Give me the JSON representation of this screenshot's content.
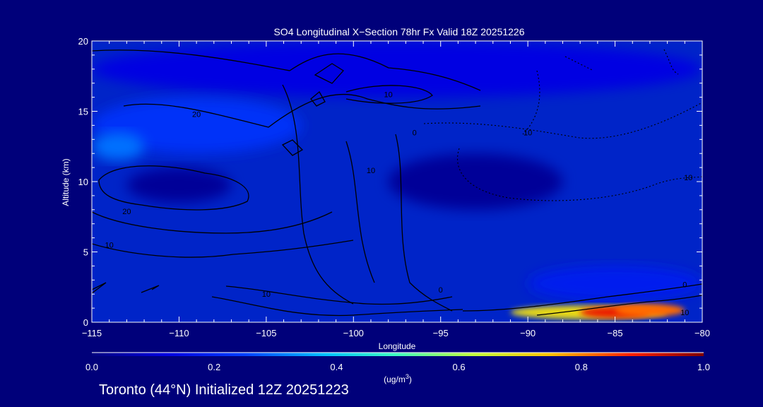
{
  "chart_data": {
    "type": "heatmap",
    "title": "SO4 Longitudinal X−Section 78hr  Fx Valid 18Z 20251226",
    "xlabel": "Longitude",
    "ylabel": "Altitude (km)",
    "xlim": [
      -115,
      -80
    ],
    "ylim": [
      0,
      20
    ],
    "x_ticks": [
      -115,
      -110,
      -105,
      -100,
      -95,
      -90,
      -85,
      -80
    ],
    "x_tick_labels": [
      "−115",
      "−110",
      "−105",
      "−100",
      "−95",
      "−90",
      "−85",
      "−80"
    ],
    "y_ticks": [
      0,
      5,
      10,
      15,
      20
    ],
    "y_tick_labels": [
      "0",
      "5",
      "10",
      "15",
      "20"
    ],
    "colorbar": {
      "min": 0.0,
      "max": 1.0,
      "tick_values": [
        0.0,
        0.2,
        0.4,
        0.6,
        0.8,
        1.0
      ],
      "tick_labels": [
        "0.0",
        "0.2",
        "0.4",
        "0.6",
        "0.8",
        "1.0"
      ],
      "units_label": "(ug/m",
      "units_superscript": "3",
      "units_close": ")"
    },
    "field_regions": [
      {
        "lon": [
          -115,
          -80
        ],
        "alt": [
          16,
          20
        ],
        "value": 0.13
      },
      {
        "lon": [
          -115,
          -103
        ],
        "alt": [
          12,
          16
        ],
        "value": 0.22
      },
      {
        "lon": [
          -115,
          -112
        ],
        "alt": [
          11.5,
          13.5
        ],
        "value": 0.3
      },
      {
        "lon": [
          -113,
          -107
        ],
        "alt": [
          8.5,
          11
        ],
        "value": 0.03
      },
      {
        "lon": [
          -98,
          -88
        ],
        "alt": [
          8,
          12
        ],
        "value": 0.03
      },
      {
        "lon": [
          -90,
          -80
        ],
        "alt": [
          1.5,
          4
        ],
        "value": 0.18
      },
      {
        "lon": [
          -91,
          -82
        ],
        "alt": [
          0.2,
          1.2
        ],
        "value": 0.7
      },
      {
        "lon": [
          -87,
          -83
        ],
        "alt": [
          0.3,
          1.1
        ],
        "value": 0.9
      },
      {
        "lon": [
          -85,
          -81
        ],
        "alt": [
          0.4,
          1.3
        ],
        "value": 0.82
      }
    ],
    "contour_labels": [
      {
        "text": "10",
        "lon": -98,
        "alt": 16
      },
      {
        "text": "20",
        "lon": -109,
        "alt": 14.6
      },
      {
        "text": "0",
        "lon": -96.5,
        "alt": 13.3
      },
      {
        "text": "10",
        "lon": -90,
        "alt": 13.3
      },
      {
        "text": "10",
        "lon": -99,
        "alt": 10.6
      },
      {
        "text": "20",
        "lon": -113,
        "alt": 7.7
      },
      {
        "text": "10",
        "lon": -114,
        "alt": 5.3
      },
      {
        "text": "10",
        "lon": -105,
        "alt": 1.8
      },
      {
        "text": "0",
        "lon": -95,
        "alt": 2.1
      },
      {
        "text": "0",
        "lon": -81,
        "alt": 2.5
      },
      {
        "text": "10",
        "lon": -81,
        "alt": 0.5
      },
      {
        "text": "10",
        "lon": -80.8,
        "alt": 10.1
      }
    ]
  },
  "footer": "Toronto (44°N) Initialized 12Z 20251223"
}
